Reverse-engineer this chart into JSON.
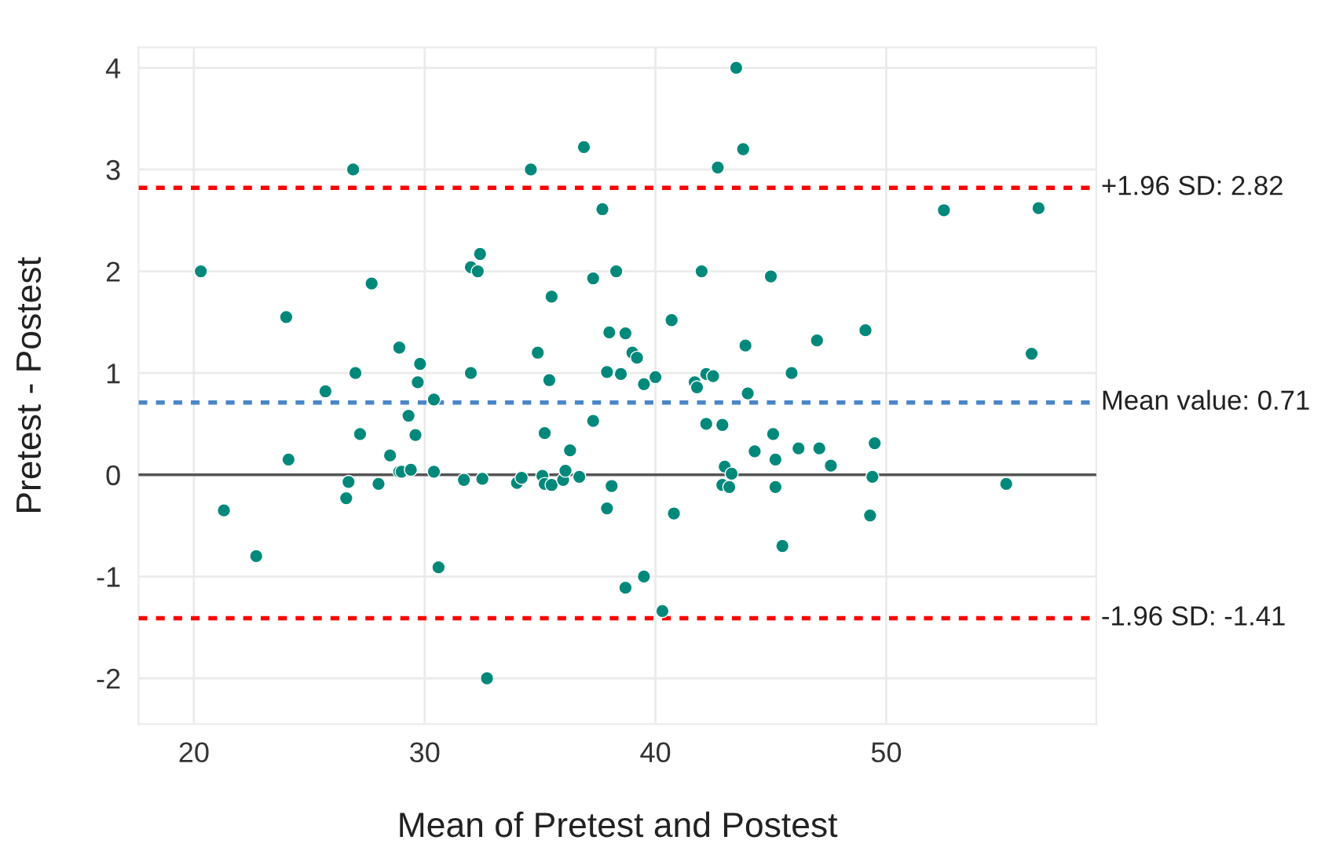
{
  "chart_data": {
    "type": "scatter",
    "xlabel": "Mean of Pretest and Postest",
    "ylabel": "Pretest - Postest",
    "xlim": [
      17.6,
      59.1
    ],
    "ylim": [
      -2.45,
      4.2
    ],
    "xticks": [
      20,
      30,
      40,
      50
    ],
    "yticks": [
      -2,
      -1,
      0,
      1,
      2,
      3,
      4
    ],
    "grid": true,
    "marker": "circle",
    "series": [
      {
        "color": "#00897b",
        "x": [
          20.3,
          24.0,
          26.9,
          27.7,
          28.9,
          29.8,
          27.0,
          29.7,
          32.0,
          32.0,
          32.3,
          32.4,
          34.6,
          36.9,
          37.7,
          37.3,
          38.3,
          35.5,
          34.9,
          38.0,
          35.4,
          37.9,
          38.5,
          43.5,
          43.8,
          42.7,
          42.0,
          45.0,
          52.5,
          56.6,
          38.7,
          40.7,
          39.0,
          39.2,
          43.9,
          47.0,
          49.1,
          56.3,
          39.5,
          40.0,
          41.7,
          41.8,
          42.2,
          42.5,
          45.9,
          21.3,
          22.7,
          24.1,
          25.7,
          27.2,
          26.7,
          26.6,
          28.0,
          28.5,
          28.9,
          29.0,
          29.4,
          29.3,
          29.6,
          30.4,
          30.4,
          30.6,
          31.7,
          32.5,
          32.7,
          34.0,
          34.2,
          35.2,
          35.1,
          35.2,
          35.5,
          36.0,
          36.1,
          36.7,
          36.3,
          37.3,
          37.9,
          38.1,
          44.0,
          42.2,
          42.9,
          45.1,
          44.3,
          45.2,
          46.2,
          47.1,
          47.6,
          49.5,
          49.4,
          43.0,
          43.3,
          42.9,
          43.2,
          45.2,
          40.8,
          45.5,
          49.3,
          55.2,
          38.7,
          39.5,
          40.3
        ],
        "values": [
          2.0,
          1.55,
          3.0,
          1.88,
          1.25,
          1.09,
          1.0,
          0.91,
          1.0,
          2.04,
          2.0,
          2.17,
          3.0,
          3.22,
          2.61,
          1.93,
          2.0,
          1.75,
          1.2,
          1.4,
          0.93,
          1.01,
          0.99,
          4.0,
          3.2,
          3.02,
          2.0,
          1.95,
          2.6,
          2.62,
          1.39,
          1.52,
          1.2,
          1.15,
          1.27,
          1.32,
          1.42,
          1.19,
          0.89,
          0.96,
          0.91,
          0.86,
          0.99,
          0.97,
          1.0,
          -0.35,
          -0.8,
          0.15,
          0.82,
          0.4,
          -0.07,
          -0.23,
          -0.09,
          0.19,
          0.03,
          0.03,
          0.05,
          0.58,
          0.39,
          0.74,
          0.03,
          -0.91,
          -0.05,
          -0.04,
          -2.0,
          -0.08,
          -0.03,
          0.41,
          -0.01,
          -0.09,
          -0.1,
          -0.05,
          0.04,
          -0.02,
          0.24,
          0.53,
          -0.33,
          -0.11,
          0.8,
          0.5,
          0.49,
          0.4,
          0.23,
          0.15,
          0.26,
          0.26,
          0.09,
          0.31,
          -0.02,
          0.08,
          0.01,
          -0.1,
          -0.12,
          -0.12,
          -0.38,
          -0.7,
          -0.4,
          -0.09,
          -1.11,
          -1.0,
          -1.34
        ]
      }
    ],
    "ref_lines": [
      {
        "axis": "y",
        "value": 0,
        "color": "#555555",
        "line_style": "solid"
      },
      {
        "axis": "y",
        "value": 2.82,
        "label": "+1.96 SD: 2.82",
        "color": "#ff0000",
        "line_style": "dotted"
      },
      {
        "axis": "y",
        "value": 0.71,
        "label": "Mean value: 0.71",
        "color": "#4a86c8",
        "line_style": "dotted"
      },
      {
        "axis": "y",
        "value": -1.41,
        "label": "-1.96 SD: -1.41",
        "color": "#ff0000",
        "line_style": "dotted"
      }
    ]
  }
}
